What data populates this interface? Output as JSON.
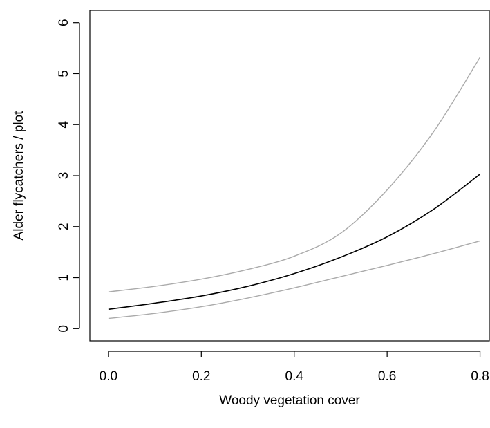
{
  "chart_data": {
    "type": "line",
    "title": "",
    "xlabel": "Woody vegetation cover",
    "ylabel": "Alder flycatchers / plot",
    "xlim": [
      -0.04,
      0.82
    ],
    "ylim": [
      -0.24,
      6.24
    ],
    "x_ticks": [
      0.0,
      0.2,
      0.4,
      0.6,
      0.8
    ],
    "x_tick_labels": [
      "0.0",
      "0.2",
      "0.4",
      "0.6",
      "0.8"
    ],
    "y_ticks": [
      0,
      1,
      2,
      3,
      4,
      5,
      6
    ],
    "y_tick_labels": [
      "0",
      "1",
      "2",
      "3",
      "4",
      "5",
      "6"
    ],
    "grid": false,
    "legend": "none",
    "series": [
      {
        "role": "estimate",
        "color": "#000000",
        "x": [
          0.0,
          0.1,
          0.2,
          0.3,
          0.4,
          0.5,
          0.6,
          0.7,
          0.8
        ],
        "y": [
          0.38,
          0.5,
          0.64,
          0.83,
          1.08,
          1.4,
          1.8,
          2.34,
          3.03
        ]
      },
      {
        "role": "upper",
        "color": "#aaaaaa",
        "x": [
          0.0,
          0.1,
          0.2,
          0.3,
          0.4,
          0.5,
          0.6,
          0.7,
          0.8
        ],
        "y": [
          0.72,
          0.83,
          0.97,
          1.16,
          1.42,
          1.87,
          2.72,
          3.86,
          5.32
        ]
      },
      {
        "role": "lower",
        "color": "#aaaaaa",
        "x": [
          0.0,
          0.1,
          0.2,
          0.3,
          0.4,
          0.5,
          0.6,
          0.7,
          0.8
        ],
        "y": [
          0.2,
          0.3,
          0.43,
          0.6,
          0.8,
          1.02,
          1.24,
          1.47,
          1.72
        ]
      }
    ]
  }
}
